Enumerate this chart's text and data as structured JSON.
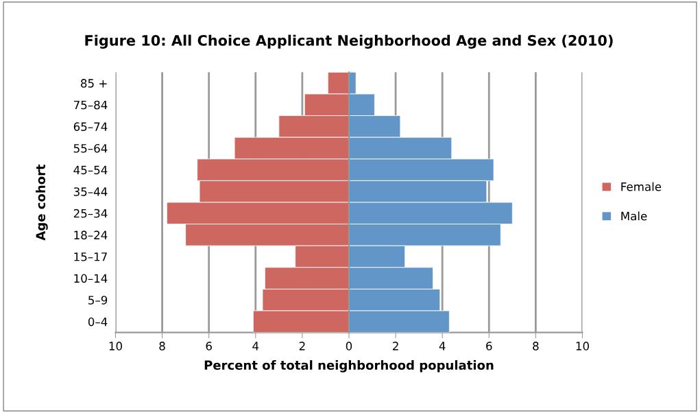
{
  "chart_data": {
    "type": "bar",
    "orientation": "horizontal",
    "stacked": true,
    "title": "Figure 10: All Choice Applicant Neighborhood Age and Sex (2010)",
    "xlabel": "Percent of total neighborhood population",
    "ylabel": "Age cohort",
    "categories": [
      "85 +",
      "75–84",
      "65–74",
      "55–64",
      "45–54",
      "35–44",
      "25–34",
      "18–24",
      "15–17",
      "10–14",
      "5–9",
      "0–4"
    ],
    "series": [
      {
        "name": "Female",
        "color": "#cd6760",
        "values": [
          -0.9,
          -1.9,
          -3.0,
          -4.9,
          -6.5,
          -6.4,
          -7.8,
          -7.0,
          -2.3,
          -3.6,
          -3.7,
          -4.1
        ]
      },
      {
        "name": "Male",
        "color": "#6296c8",
        "values": [
          0.3,
          1.1,
          2.2,
          4.4,
          6.2,
          5.9,
          7.0,
          6.5,
          2.4,
          3.6,
          3.9,
          4.3
        ]
      }
    ],
    "xlim": [
      -10,
      10
    ],
    "xticks": [
      {
        "value": -10,
        "label": "10"
      },
      {
        "value": -8,
        "label": "8"
      },
      {
        "value": -6,
        "label": "6"
      },
      {
        "value": -4,
        "label": "4"
      },
      {
        "value": -2,
        "label": "2"
      },
      0,
      2,
      4,
      6,
      8,
      10
    ],
    "grid": "x",
    "legend": "right"
  }
}
